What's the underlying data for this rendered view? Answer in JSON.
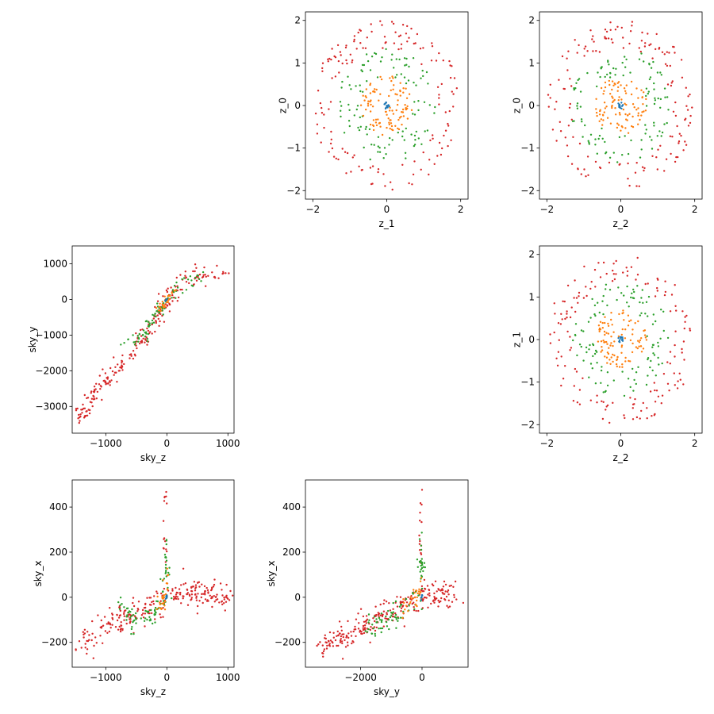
{
  "chart_data": [
    {
      "type": "scatter",
      "xlabel": "z_1",
      "ylabel": "z_0",
      "xlim": [
        -2.2,
        2.2
      ],
      "ylim": [
        -2.2,
        2.2
      ],
      "xticks": [
        -2,
        0,
        2
      ],
      "xtick_labels": [
        "−2",
        "0",
        "2"
      ],
      "yticks": [
        -2,
        -1,
        0,
        1,
        2
      ],
      "ytick_labels": [
        "−2",
        "−1",
        "0",
        "1",
        "2"
      ],
      "grid": false,
      "legend": "none",
      "series": [
        {
          "color": "#d62728",
          "shape": "ring",
          "r_min": 1.35,
          "r_max": 2.0,
          "count": 150
        },
        {
          "color": "#2ca02c",
          "shape": "ring",
          "r_min": 0.7,
          "r_max": 1.35,
          "count": 110
        },
        {
          "color": "#ff7f0e",
          "shape": "disk",
          "r_min": 0.0,
          "r_max": 0.7,
          "count": 100
        },
        {
          "color": "#1f77b4",
          "shape": "disk",
          "r_min": 0.0,
          "r_max": 0.08,
          "count": 12
        }
      ]
    },
    {
      "type": "scatter",
      "xlabel": "z_2",
      "ylabel": "z_0",
      "xlim": [
        -2.2,
        2.2
      ],
      "ylim": [
        -2.2,
        2.2
      ],
      "xticks": [
        -2,
        0,
        2
      ],
      "xtick_labels": [
        "−2",
        "0",
        "2"
      ],
      "yticks": [
        -2,
        -1,
        0,
        1,
        2
      ],
      "ytick_labels": [
        "−2",
        "−1",
        "0",
        "1",
        "2"
      ],
      "grid": false,
      "legend": "none",
      "series": [
        {
          "color": "#d62728",
          "shape": "ring",
          "r_min": 1.35,
          "r_max": 2.0,
          "count": 150
        },
        {
          "color": "#2ca02c",
          "shape": "ring",
          "r_min": 0.7,
          "r_max": 1.35,
          "count": 110
        },
        {
          "color": "#ff7f0e",
          "shape": "disk",
          "r_min": 0.0,
          "r_max": 0.7,
          "count": 100
        },
        {
          "color": "#1f77b4",
          "shape": "disk",
          "r_min": 0.0,
          "r_max": 0.08,
          "count": 12
        }
      ]
    },
    {
      "type": "scatter",
      "xlabel": "sky_z",
      "ylabel": "sky_y",
      "xlim": [
        -1550,
        1100
      ],
      "ylim": [
        -3750,
        1500
      ],
      "xticks": [
        -1000,
        0,
        1000
      ],
      "xtick_labels": [
        "−1000",
        "0",
        "1000"
      ],
      "yticks": [
        -3000,
        -2000,
        -1000,
        0,
        1000
      ],
      "ytick_labels": [
        "−3000",
        "−2000",
        "−1000",
        "0",
        "1000"
      ],
      "grid": false,
      "legend": "none",
      "series": [
        {
          "color": "#d62728",
          "count": 240,
          "path": [
            [
              -1450,
              -3400
            ],
            [
              -1200,
              -2700
            ],
            [
              -900,
              -2100
            ],
            [
              -600,
              -1600
            ],
            [
              -300,
              -900
            ],
            [
              0,
              -50
            ],
            [
              250,
              550
            ],
            [
              600,
              650
            ],
            [
              1000,
              750
            ]
          ],
          "spread": [
            100,
            260
          ]
        },
        {
          "color": "#2ca02c",
          "count": 80,
          "path": [
            [
              -800,
              -1200
            ],
            [
              -400,
              -1100
            ],
            [
              -250,
              -700
            ],
            [
              0,
              100
            ],
            [
              300,
              550
            ],
            [
              600,
              650
            ]
          ],
          "spread": [
            90,
            180
          ]
        },
        {
          "color": "#ff7f0e",
          "count": 30,
          "path": [
            [
              -150,
              -300
            ],
            [
              0,
              0
            ],
            [
              150,
              250
            ]
          ],
          "spread": [
            50,
            120
          ]
        },
        {
          "color": "#1f77b4",
          "count": 8,
          "path": [
            [
              -20,
              -40
            ],
            [
              20,
              40
            ]
          ],
          "spread": [
            10,
            20
          ]
        }
      ]
    },
    {
      "type": "scatter",
      "xlabel": "z_2",
      "ylabel": "z_1",
      "xlim": [
        -2.2,
        2.2
      ],
      "ylim": [
        -2.2,
        2.2
      ],
      "xticks": [
        -2,
        0,
        2
      ],
      "xtick_labels": [
        "−2",
        "0",
        "2"
      ],
      "yticks": [
        -2,
        -1,
        0,
        1,
        2
      ],
      "ytick_labels": [
        "−2",
        "−1",
        "0",
        "1",
        "2"
      ],
      "grid": false,
      "legend": "none",
      "series": [
        {
          "color": "#d62728",
          "shape": "ring",
          "r_min": 1.35,
          "r_max": 2.0,
          "count": 150
        },
        {
          "color": "#2ca02c",
          "shape": "ring",
          "r_min": 0.7,
          "r_max": 1.35,
          "count": 110
        },
        {
          "color": "#ff7f0e",
          "shape": "disk",
          "r_min": 0.0,
          "r_max": 0.7,
          "count": 100
        },
        {
          "color": "#1f77b4",
          "shape": "disk",
          "r_min": 0.0,
          "r_max": 0.08,
          "count": 12
        }
      ]
    },
    {
      "type": "scatter",
      "xlabel": "sky_z",
      "ylabel": "sky_x",
      "xlim": [
        -1550,
        1100
      ],
      "ylim": [
        -310,
        520
      ],
      "xticks": [
        -1000,
        0,
        1000
      ],
      "xtick_labels": [
        "−1000",
        "0",
        "1000"
      ],
      "yticks": [
        -200,
        0,
        200,
        400
      ],
      "ytick_labels": [
        "−200",
        "0",
        "200",
        "400"
      ],
      "grid": false,
      "legend": "none",
      "series": [
        {
          "color": "#d62728",
          "count": 260,
          "path": [
            [
              -1450,
              -220
            ],
            [
              -1150,
              -150
            ],
            [
              -800,
              -100
            ],
            [
              -400,
              -60
            ],
            [
              -100,
              -20
            ],
            [
              0,
              10
            ],
            [
              400,
              20
            ],
            [
              1000,
              5
            ]
          ],
          "spread": [
            120,
            60
          ],
          "spike": {
            "x": [
              -60,
              0
            ],
            "y": [
              150,
              480
            ],
            "count": 15
          }
        },
        {
          "color": "#2ca02c",
          "count": 80,
          "path": [
            [
              -800,
              -40
            ],
            [
              -500,
              -120
            ],
            [
              -250,
              -80
            ],
            [
              -50,
              0
            ],
            [
              0,
              150
            ]
          ],
          "spread": [
            80,
            50
          ],
          "spike": {
            "x": [
              -40,
              0
            ],
            "y": [
              80,
              300
            ],
            "count": 10
          }
        },
        {
          "color": "#ff7f0e",
          "count": 30,
          "path": [
            [
              -150,
              -50
            ],
            [
              -30,
              0
            ],
            [
              0,
              100
            ]
          ],
          "spread": [
            40,
            40
          ]
        },
        {
          "color": "#1f77b4",
          "count": 8,
          "path": [
            [
              -20,
              -10
            ],
            [
              10,
              10
            ]
          ],
          "spread": [
            10,
            5
          ]
        }
      ]
    },
    {
      "type": "scatter",
      "xlabel": "sky_y",
      "ylabel": "sky_x",
      "xlim": [
        -3800,
        1500
      ],
      "ylim": [
        -310,
        520
      ],
      "xticks": [
        -2000,
        0
      ],
      "xtick_labels": [
        "−2000",
        "0"
      ],
      "yticks": [
        -200,
        0,
        200,
        400
      ],
      "ytick_labels": [
        "−200",
        "0",
        "200",
        "400"
      ],
      "grid": false,
      "legend": "none",
      "series": [
        {
          "color": "#d62728",
          "count": 260,
          "path": [
            [
              -3400,
              -220
            ],
            [
              -2500,
              -170
            ],
            [
              -1600,
              -100
            ],
            [
              -800,
              -50
            ],
            [
              -200,
              0
            ],
            [
              0,
              10
            ],
            [
              600,
              20
            ],
            [
              1200,
              10
            ]
          ],
          "spread": [
            250,
            60
          ],
          "spike": {
            "x": [
              -100,
              0
            ],
            "y": [
              150,
              480
            ],
            "count": 15
          }
        },
        {
          "color": "#2ca02c",
          "count": 80,
          "path": [
            [
              -1800,
              -150
            ],
            [
              -1200,
              -100
            ],
            [
              -600,
              -40
            ],
            [
              -100,
              0
            ],
            [
              0,
              200
            ]
          ],
          "spread": [
            200,
            50
          ],
          "spike": {
            "x": [
              -80,
              0
            ],
            "y": [
              80,
              300
            ],
            "count": 10
          }
        },
        {
          "color": "#ff7f0e",
          "count": 30,
          "path": [
            [
              -600,
              -60
            ],
            [
              -100,
              0
            ],
            [
              0,
              100
            ]
          ],
          "spread": [
            80,
            40
          ]
        },
        {
          "color": "#1f77b4",
          "count": 8,
          "path": [
            [
              -40,
              -10
            ],
            [
              20,
              10
            ]
          ],
          "spread": [
            20,
            5
          ]
        }
      ]
    }
  ]
}
